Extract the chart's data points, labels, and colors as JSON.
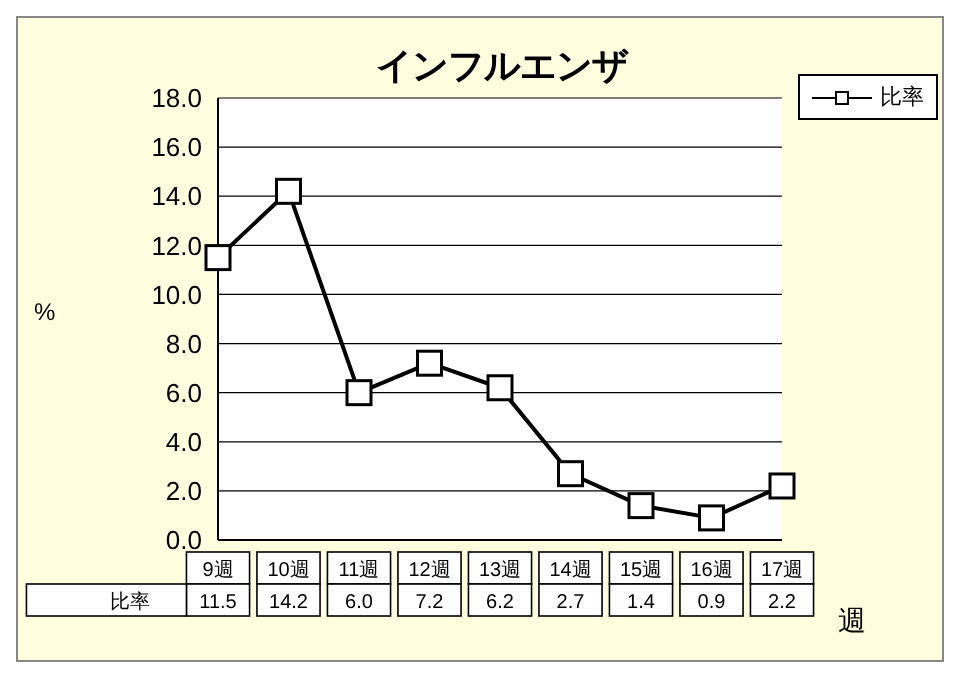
{
  "chart_data": {
    "type": "line",
    "title": "インフルエンザ",
    "ylabel": "%",
    "xlabel": "週",
    "categories": [
      "9週",
      "10週",
      "11週",
      "12週",
      "13週",
      "14週",
      "15週",
      "16週",
      "17週"
    ],
    "series": [
      {
        "name": "比率",
        "color": "#000000",
        "values": [
          11.5,
          14.2,
          6.0,
          7.2,
          6.2,
          2.7,
          1.4,
          0.9,
          2.2
        ],
        "value_labels": [
          "11.5",
          "14.2",
          "6.0",
          "7.2",
          "6.2",
          "2.7",
          "1.4",
          "0.9",
          "2.2"
        ]
      }
    ],
    "ylim": [
      0,
      18
    ],
    "yticks": [
      {
        "value": 0,
        "label": "0.0"
      },
      {
        "value": 2,
        "label": "2.0"
      },
      {
        "value": 4,
        "label": "4.0"
      },
      {
        "value": 6,
        "label": "6.0"
      },
      {
        "value": 8,
        "label": "8.0"
      },
      {
        "value": 10,
        "label": "10.0"
      },
      {
        "value": 12,
        "label": "12.0"
      },
      {
        "value": 14,
        "label": "14.0"
      },
      {
        "value": 16,
        "label": "16.0"
      },
      {
        "value": 18,
        "label": "18.0"
      }
    ],
    "grid": "y",
    "legend": "top right",
    "marker": "square",
    "line_style": "solid"
  }
}
